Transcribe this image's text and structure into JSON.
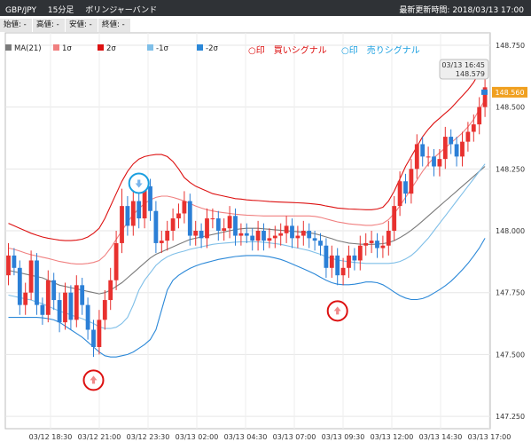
{
  "header": {
    "pair": "GBP/JPY",
    "interval": "15分足",
    "indicator": "ボリンジャーバンド",
    "updated_label": "最新更新時間: 2018/03/13 17:00"
  },
  "ohlc": {
    "open": "始値: -",
    "high": "高値: -",
    "low": "安値: -",
    "close": "終値: -"
  },
  "legend": [
    {
      "label": "MA(21)",
      "color": "#7a7a7a"
    },
    {
      "label": "1σ",
      "color": "#f08080"
    },
    {
      "label": "2σ",
      "color": "#dd1111"
    },
    {
      "label": "-1σ",
      "color": "#7fbfe8"
    },
    {
      "label": "-2σ",
      "color": "#2b88d8"
    }
  ],
  "signals": {
    "buy": "○印　買いシグナル",
    "sell": "○印　売りシグナル"
  },
  "tooltip": {
    "time": "03/13 16:45",
    "value": "148.579"
  },
  "last_price": "148.560",
  "colors": {
    "up": "#e8312f",
    "down": "#2b7fd6",
    "buy": "#dd1111",
    "sell": "#1a9fe0",
    "arrow_buy": "#f08a8a",
    "arrow_sell": "#7ab4ea"
  },
  "chart_data": {
    "type": "candlestick",
    "title": "GBP/JPY 15分足 ボリンジャーバンド",
    "ylim": [
      147.2,
      148.8
    ],
    "y_ticks": [
      "148.750",
      "148.500",
      "148.250",
      "148.000",
      "147.750",
      "147.500",
      "147.250"
    ],
    "x_ticks": [
      "03/12 18:30",
      "03/12 21:00",
      "03/12 23:30",
      "03/13 02:00",
      "03/13 04:30",
      "03/13 07:00",
      "03/13 09:30",
      "03/13 12:00",
      "03/13 14:30",
      "03/13 17:00"
    ],
    "candles": {
      "open": [
        147.82,
        147.9,
        147.85,
        147.7,
        147.75,
        147.88,
        147.7,
        147.66,
        147.8,
        147.72,
        147.63,
        147.75,
        147.64,
        147.78,
        147.7,
        147.6,
        147.53,
        147.64,
        147.72,
        147.8,
        147.95,
        148.1,
        148.02,
        148.12,
        148.05,
        148.18,
        148.08,
        147.95,
        147.96,
        148.0,
        148.05,
        148.07,
        148.12,
        147.98,
        148.0,
        147.97,
        148.05,
        148.05,
        148.0,
        148.01,
        148.06,
        147.98,
        147.99,
        147.98,
        147.96,
        148.0,
        147.96,
        147.97,
        147.98,
        147.99,
        148.02,
        147.97,
        147.98,
        148.0,
        147.97,
        147.96,
        147.94,
        147.85,
        147.9,
        147.82,
        147.85,
        147.9,
        147.88,
        147.94,
        147.95,
        147.96,
        147.93,
        147.94,
        148.0,
        148.1,
        148.2,
        148.15,
        148.25,
        148.35,
        148.3,
        148.3,
        148.26,
        148.29,
        148.38,
        148.35,
        148.3,
        148.36,
        148.4,
        148.43,
        148.5
      ],
      "close": [
        147.9,
        147.85,
        147.7,
        147.75,
        147.88,
        147.7,
        147.66,
        147.8,
        147.72,
        147.63,
        147.75,
        147.64,
        147.78,
        147.7,
        147.6,
        147.53,
        147.64,
        147.72,
        147.8,
        147.95,
        148.1,
        148.02,
        148.12,
        148.05,
        148.18,
        148.08,
        147.95,
        147.96,
        148.0,
        148.05,
        148.07,
        148.12,
        147.98,
        148.0,
        147.97,
        148.05,
        148.05,
        148.0,
        148.01,
        148.06,
        147.98,
        147.99,
        147.98,
        147.96,
        148.0,
        147.96,
        147.97,
        147.98,
        147.99,
        148.02,
        147.97,
        147.98,
        148.0,
        147.97,
        147.96,
        147.94,
        147.85,
        147.9,
        147.82,
        147.85,
        147.9,
        147.88,
        147.94,
        147.95,
        147.96,
        147.93,
        147.94,
        148.0,
        148.1,
        148.2,
        148.15,
        148.25,
        148.35,
        148.3,
        148.3,
        148.26,
        148.29,
        148.38,
        148.35,
        148.3,
        148.36,
        148.4,
        148.43,
        148.5,
        148.58
      ],
      "high": [
        147.95,
        147.93,
        147.88,
        147.79,
        147.92,
        147.91,
        147.73,
        147.84,
        147.83,
        147.75,
        147.79,
        147.78,
        147.82,
        147.81,
        147.73,
        147.64,
        147.68,
        147.76,
        147.85,
        148.0,
        148.17,
        148.14,
        148.16,
        148.16,
        148.22,
        148.21,
        148.12,
        148.0,
        148.04,
        148.09,
        148.11,
        148.16,
        148.15,
        148.04,
        148.03,
        148.09,
        148.09,
        148.08,
        148.05,
        148.1,
        148.09,
        148.03,
        148.03,
        148.01,
        148.04,
        148.03,
        148.01,
        148.02,
        148.03,
        148.06,
        148.05,
        148.02,
        148.04,
        148.03,
        148.0,
        147.99,
        147.97,
        147.94,
        147.93,
        147.89,
        147.94,
        147.93,
        147.98,
        147.99,
        148.0,
        147.99,
        147.98,
        148.04,
        148.14,
        148.24,
        148.23,
        148.29,
        148.39,
        148.38,
        148.34,
        148.33,
        148.33,
        148.42,
        148.41,
        148.38,
        148.4,
        148.44,
        148.47,
        148.54,
        148.62
      ],
      "low": [
        147.78,
        147.82,
        147.66,
        147.66,
        147.72,
        147.66,
        147.62,
        147.63,
        147.68,
        147.59,
        147.6,
        147.6,
        147.61,
        147.66,
        147.56,
        147.49,
        147.5,
        147.6,
        147.68,
        147.76,
        147.91,
        147.98,
        147.98,
        148.01,
        148.01,
        148.04,
        147.91,
        147.91,
        147.92,
        147.96,
        148.01,
        148.03,
        147.94,
        147.94,
        147.93,
        147.93,
        148.01,
        147.96,
        147.96,
        147.97,
        147.94,
        147.94,
        147.95,
        147.92,
        147.92,
        147.92,
        147.93,
        147.93,
        147.94,
        147.95,
        147.93,
        147.93,
        147.94,
        147.93,
        147.92,
        147.9,
        147.81,
        147.81,
        147.78,
        147.78,
        147.81,
        147.84,
        147.84,
        147.9,
        147.91,
        147.89,
        147.89,
        147.9,
        147.96,
        148.06,
        148.11,
        148.11,
        148.21,
        148.26,
        148.26,
        148.22,
        148.22,
        148.25,
        148.31,
        148.26,
        148.26,
        148.32,
        148.36,
        148.39,
        148.46
      ]
    },
    "ma21": [
      147.84,
      147.835,
      147.83,
      147.825,
      147.82,
      147.815,
      147.81,
      147.8,
      147.79,
      147.78,
      147.775,
      147.77,
      147.765,
      147.76,
      147.755,
      147.75,
      147.745,
      147.75,
      147.76,
      147.775,
      147.79,
      147.81,
      147.83,
      147.85,
      147.87,
      147.89,
      147.905,
      147.915,
      147.925,
      147.935,
      147.945,
      147.955,
      147.965,
      147.97,
      147.975,
      147.98,
      147.985,
      147.99,
      147.995,
      148.0,
      148.005,
      148.008,
      148.01,
      148.01,
      148.01,
      148.008,
      148.006,
      148.004,
      148.002,
      148.0,
      147.998,
      147.996,
      147.994,
      147.992,
      147.988,
      147.982,
      147.975,
      147.968,
      147.96,
      147.955,
      147.95,
      147.948,
      147.946,
      147.945,
      147.945,
      147.946,
      147.948,
      147.952,
      147.96,
      147.972,
      147.986,
      148.002,
      148.02,
      148.04,
      148.06,
      148.08,
      148.1,
      148.12,
      148.14,
      148.16,
      148.18,
      148.2,
      148.22,
      148.24,
      148.26
    ],
    "upper1": [
      147.93,
      147.925,
      147.918,
      147.91,
      147.903,
      147.898,
      147.893,
      147.888,
      147.882,
      147.876,
      147.872,
      147.868,
      147.866,
      147.866,
      147.868,
      147.872,
      147.88,
      147.9,
      147.93,
      147.965,
      148.0,
      148.035,
      148.065,
      148.09,
      148.11,
      148.125,
      148.135,
      148.14,
      148.14,
      148.135,
      148.128,
      148.12,
      148.11,
      148.1,
      148.092,
      148.085,
      148.08,
      148.076,
      148.073,
      148.07,
      148.067,
      148.065,
      148.063,
      148.062,
      148.061,
      148.06,
      148.06,
      148.06,
      148.06,
      148.06,
      148.06,
      148.06,
      148.06,
      148.06,
      148.058,
      148.054,
      148.048,
      148.042,
      148.036,
      148.032,
      148.028,
      148.026,
      148.024,
      148.022,
      148.022,
      148.025,
      148.03,
      148.045,
      148.07,
      148.1,
      148.135,
      148.17,
      148.205,
      148.24,
      148.27,
      148.295,
      148.315,
      148.335,
      148.355,
      148.375,
      148.395,
      148.42,
      148.45,
      148.49,
      148.53
    ],
    "upper2": [
      148.03,
      148.02,
      148.01,
      148.0,
      147.99,
      147.982,
      147.975,
      147.97,
      147.966,
      147.962,
      147.96,
      147.96,
      147.962,
      147.966,
      147.975,
      147.99,
      148.01,
      148.05,
      148.1,
      148.15,
      148.2,
      148.24,
      148.27,
      148.29,
      148.3,
      148.305,
      148.308,
      148.308,
      148.3,
      148.28,
      148.25,
      148.215,
      148.195,
      148.18,
      148.17,
      148.16,
      148.15,
      148.145,
      148.14,
      148.135,
      148.13,
      148.128,
      148.125,
      148.123,
      148.122,
      148.12,
      148.118,
      148.117,
      148.116,
      148.115,
      148.114,
      148.113,
      148.112,
      148.11,
      148.108,
      148.105,
      148.1,
      148.096,
      148.092,
      148.09,
      148.088,
      148.087,
      148.086,
      148.085,
      148.085,
      148.088,
      148.095,
      148.12,
      148.16,
      148.21,
      148.26,
      148.3,
      148.34,
      148.38,
      148.41,
      148.435,
      148.455,
      148.475,
      148.495,
      148.52,
      148.545,
      148.57,
      148.6,
      148.64,
      148.69
    ],
    "lower1": [
      147.74,
      147.735,
      147.73,
      147.725,
      147.72,
      147.712,
      147.705,
      147.695,
      147.685,
      147.675,
      147.668,
      147.66,
      147.652,
      147.645,
      147.635,
      147.625,
      147.612,
      147.605,
      147.605,
      147.61,
      147.625,
      147.65,
      147.7,
      147.76,
      147.8,
      147.83,
      147.86,
      147.88,
      147.895,
      147.905,
      147.912,
      147.918,
      147.925,
      147.93,
      147.935,
      147.94,
      147.945,
      147.948,
      147.95,
      147.952,
      147.954,
      147.955,
      147.955,
      147.955,
      147.955,
      147.953,
      147.951,
      147.948,
      147.945,
      147.94,
      147.935,
      147.93,
      147.925,
      147.92,
      147.912,
      147.905,
      147.895,
      147.888,
      147.882,
      147.878,
      147.875,
      147.872,
      147.87,
      147.868,
      147.868,
      147.868,
      147.868,
      147.868,
      147.87,
      147.876,
      147.886,
      147.9,
      147.92,
      147.945,
      147.97,
      148.0,
      148.03,
      148.06,
      148.09,
      148.12,
      148.15,
      148.18,
      148.21,
      148.24,
      148.27
    ],
    "lower2": [
      147.65,
      147.65,
      147.65,
      147.65,
      147.65,
      147.65,
      147.648,
      147.645,
      147.64,
      147.63,
      147.615,
      147.6,
      147.585,
      147.57,
      147.55,
      147.53,
      147.51,
      147.495,
      147.49,
      147.49,
      147.495,
      147.5,
      147.51,
      147.525,
      147.54,
      147.56,
      147.6,
      147.68,
      147.76,
      147.8,
      147.82,
      147.835,
      147.848,
      147.858,
      147.866,
      147.872,
      147.878,
      147.884,
      147.888,
      147.892,
      147.896,
      147.898,
      147.9,
      147.9,
      147.9,
      147.898,
      147.895,
      147.89,
      147.884,
      147.876,
      147.866,
      147.856,
      147.846,
      147.836,
      147.825,
      147.812,
      147.8,
      147.79,
      147.784,
      147.782,
      147.782,
      147.784,
      147.788,
      147.793,
      147.793,
      147.79,
      147.782,
      147.768,
      147.752,
      147.738,
      147.728,
      147.722,
      147.722,
      147.726,
      147.735,
      147.748,
      147.762,
      147.778,
      147.796,
      147.818,
      147.842,
      147.868,
      147.898,
      147.93,
      147.97
    ],
    "buy_signals": [
      {
        "index": 15,
        "price": 147.5
      },
      {
        "index": 58,
        "price": 147.78
      }
    ],
    "sell_signals": [
      {
        "index": 23,
        "price": 148.21
      }
    ]
  }
}
